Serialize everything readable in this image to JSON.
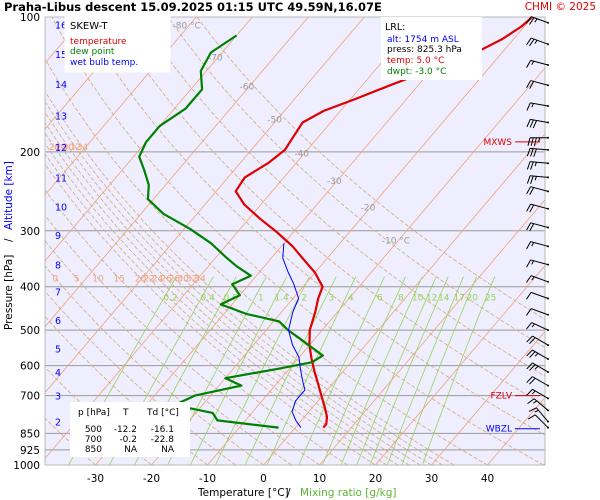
{
  "header": {
    "title": "Praha-Libus   descent   15.09.2025 01:15 UTC   49.59N,16.07E",
    "credit": "CHMI © 2025"
  },
  "legend": {
    "name": "SKEW-T",
    "entries": [
      {
        "label": "temperature",
        "color": "#e00000"
      },
      {
        "label": "dew point",
        "color": "#008000"
      },
      {
        "label": "wet bulb temp.",
        "color": "#0000ff"
      }
    ]
  },
  "lrl_box": {
    "title": "LRL:",
    "lines": [
      {
        "text": "alt: 1754 m ASL",
        "color": "#0000ff"
      },
      {
        "text": "press: 825.3 hPa",
        "color": "#000000"
      },
      {
        "text": "temp: 5.0 °C",
        "color": "#e00000"
      },
      {
        "text": "dwpt: -3.0 °C",
        "color": "#008000"
      }
    ]
  },
  "level_table": {
    "headers": [
      "p [hPa]",
      "T",
      "Td [°C]"
    ],
    "rows": [
      [
        "500",
        "-12.2",
        "-16.1"
      ],
      [
        "700",
        "-0.2",
        "-22.8"
      ],
      [
        "850",
        "NA",
        "NA"
      ]
    ]
  },
  "level_markers": [
    {
      "label": "MXWS",
      "pressure": 190,
      "color": "#e00000"
    },
    {
      "label": "FZLV",
      "pressure": 700,
      "color": "#e00000"
    },
    {
      "label": "WBZL",
      "pressure": 830,
      "color": "#0000ff"
    }
  ],
  "colors": {
    "isotherm": "#f3a07a",
    "dry_adiabat": "#d2aa78",
    "mixing_ratio": "#9ad25a",
    "isobar": "#9a9a9a",
    "plot_bg": "#eeeeff",
    "temperature": "#e00000",
    "dew_point": "#008000",
    "wet_bulb": "#0000ff",
    "altitude": "#0000ff"
  },
  "chart_data": {
    "type": "line",
    "title": "Praha-Libus descent 15.09.2025 01:15 UTC 49.59N,16.07E",
    "xlabel": "Temperature [°C]",
    "xlabel_secondary": "Mixing ratio [g/kg]",
    "ylabel": "Pressure [hPa]",
    "ylabel_secondary": "Altitude [km]",
    "y_scale": "log",
    "xlim": [
      -35,
      40
    ],
    "ylim": [
      1000,
      100
    ],
    "x_ticks": [
      -30,
      -20,
      -10,
      0,
      10,
      20,
      30,
      40
    ],
    "y_ticks": [
      100,
      200,
      300,
      400,
      500,
      600,
      700,
      850,
      925,
      1000
    ],
    "altitude_ticks": [
      {
        "km": 2,
        "p": 800
      },
      {
        "km": 3,
        "p": 700
      },
      {
        "km": 4,
        "p": 620
      },
      {
        "km": 5,
        "p": 550
      },
      {
        "km": 6,
        "p": 475
      },
      {
        "km": 7,
        "p": 410
      },
      {
        "km": 8,
        "p": 357
      },
      {
        "km": 9,
        "p": 307
      },
      {
        "km": 10,
        "p": 265
      },
      {
        "km": 11,
        "p": 228
      },
      {
        "km": 12,
        "p": 195
      },
      {
        "km": 13,
        "p": 166
      },
      {
        "km": 14,
        "p": 141
      },
      {
        "km": 15,
        "p": 121
      },
      {
        "km": 16,
        "p": 104
      }
    ],
    "isotherm_labels": [
      {
        "text": "-80 °C",
        "t": -80,
        "p": 106
      },
      {
        "text": "-70",
        "t": -70,
        "p": 125
      },
      {
        "text": "-60",
        "t": -60,
        "p": 145
      },
      {
        "text": "-50",
        "t": -50,
        "p": 172
      },
      {
        "text": "-40",
        "t": -40,
        "p": 205
      },
      {
        "text": "-30",
        "t": -30,
        "p": 236
      },
      {
        "text": "-20",
        "t": -20,
        "p": 270
      },
      {
        "text": "-10 °C",
        "t": -10,
        "p": 320
      }
    ],
    "adiabat_labels_upper": {
      "p": 195,
      "values": [
        "0",
        "5",
        "10",
        "15",
        "20",
        "22",
        "24",
        "26",
        "28",
        "30",
        "32",
        "34"
      ]
    },
    "adiabat_labels_lower": {
      "p": 383,
      "values": [
        "-10",
        "-5",
        "0",
        "5",
        "10",
        "15",
        "20",
        "22",
        "24",
        "26",
        "28",
        "30",
        "32",
        "34"
      ]
    },
    "mixing_ratio_values": [
      "0.2",
      "0.4",
      "0.6",
      "1",
      "1.4",
      "2",
      "3",
      "4",
      "6",
      "8",
      "10",
      "12",
      "14",
      "17",
      "20",
      "25"
    ],
    "series": [
      {
        "name": "temperature",
        "color": "#e00000",
        "points": [
          [
            -20,
            100
          ],
          [
            -20.5,
            105
          ],
          [
            -22,
            112
          ],
          [
            -24,
            118
          ],
          [
            -27,
            125
          ],
          [
            -31,
            133
          ],
          [
            -35,
            142
          ],
          [
            -39,
            152
          ],
          [
            -43,
            162
          ],
          [
            -45,
            172
          ],
          [
            -44.5,
            185
          ],
          [
            -44,
            198
          ],
          [
            -45,
            212
          ],
          [
            -47,
            228
          ],
          [
            -46.5,
            245
          ],
          [
            -43,
            262
          ],
          [
            -38,
            282
          ],
          [
            -33,
            302
          ],
          [
            -28,
            325
          ],
          [
            -24,
            348
          ],
          [
            -20,
            372
          ],
          [
            -16.5,
            400
          ],
          [
            -15.5,
            425
          ],
          [
            -14,
            455
          ],
          [
            -12.2,
            500
          ],
          [
            -10,
            540
          ],
          [
            -7.5,
            580
          ],
          [
            -5,
            620
          ],
          [
            -2.5,
            660
          ],
          [
            -0.2,
            700
          ],
          [
            2,
            740
          ],
          [
            4,
            780
          ],
          [
            5,
            810
          ],
          [
            5,
            825
          ]
        ]
      },
      {
        "name": "dew point",
        "color": "#008000",
        "points": [
          [
            -70,
            110
          ],
          [
            -72,
            120
          ],
          [
            -71,
            132
          ],
          [
            -68,
            145
          ],
          [
            -68,
            160
          ],
          [
            -70,
            175
          ],
          [
            -70,
            190
          ],
          [
            -69,
            205
          ],
          [
            -66,
            220
          ],
          [
            -63,
            237
          ],
          [
            -61,
            255
          ],
          [
            -56,
            275
          ],
          [
            -49,
            297
          ],
          [
            -43,
            320
          ],
          [
            -38,
            345
          ],
          [
            -35,
            360
          ],
          [
            -31,
            378
          ],
          [
            -33,
            395
          ],
          [
            -30,
            418
          ],
          [
            -32,
            438
          ],
          [
            -26,
            460
          ],
          [
            -19,
            478
          ],
          [
            -16.1,
            500
          ],
          [
            -13,
            520
          ],
          [
            -9,
            548
          ],
          [
            -6,
            570
          ],
          [
            -7,
            590
          ],
          [
            -12,
            610
          ],
          [
            -20,
            640
          ],
          [
            -16,
            665
          ],
          [
            -22.8,
            700
          ],
          [
            -25,
            735
          ],
          [
            -17,
            765
          ],
          [
            -15,
            795
          ],
          [
            -3,
            825
          ]
        ]
      },
      {
        "name": "wet bulb temp.",
        "color": "#0000ff",
        "points": [
          [
            -30,
            320
          ],
          [
            -28,
            345
          ],
          [
            -25,
            370
          ],
          [
            -22,
            395
          ],
          [
            -19,
            425
          ],
          [
            -18,
            455
          ],
          [
            -16,
            500
          ],
          [
            -13,
            540
          ],
          [
            -10,
            575
          ],
          [
            -8,
            610
          ],
          [
            -6,
            645
          ],
          [
            -4,
            680
          ],
          [
            -4,
            720
          ],
          [
            -3,
            760
          ],
          [
            -1,
            795
          ],
          [
            1,
            825
          ]
        ]
      }
    ],
    "wind_barbs": [
      {
        "p": 103,
        "dir": 290,
        "kt": 25
      },
      {
        "p": 115,
        "dir": 290,
        "kt": 25
      },
      {
        "p": 128,
        "dir": 285,
        "kt": 15
      },
      {
        "p": 142,
        "dir": 285,
        "kt": 20
      },
      {
        "p": 158,
        "dir": 280,
        "kt": 15
      },
      {
        "p": 172,
        "dir": 280,
        "kt": 30
      },
      {
        "p": 186,
        "dir": 270,
        "kt": 35
      },
      {
        "p": 198,
        "dir": 275,
        "kt": 30
      },
      {
        "p": 212,
        "dir": 275,
        "kt": 25
      },
      {
        "p": 228,
        "dir": 275,
        "kt": 25
      },
      {
        "p": 245,
        "dir": 285,
        "kt": 20
      },
      {
        "p": 268,
        "dir": 285,
        "kt": 20
      },
      {
        "p": 295,
        "dir": 285,
        "kt": 20
      },
      {
        "p": 325,
        "dir": 285,
        "kt": 15
      },
      {
        "p": 357,
        "dir": 285,
        "kt": 15
      },
      {
        "p": 390,
        "dir": 290,
        "kt": 15
      },
      {
        "p": 425,
        "dir": 290,
        "kt": 10
      },
      {
        "p": 462,
        "dir": 290,
        "kt": 10
      },
      {
        "p": 500,
        "dir": 295,
        "kt": 15
      },
      {
        "p": 540,
        "dir": 300,
        "kt": 20
      },
      {
        "p": 580,
        "dir": 300,
        "kt": 25
      },
      {
        "p": 620,
        "dir": 300,
        "kt": 25
      },
      {
        "p": 665,
        "dir": 300,
        "kt": 20
      },
      {
        "p": 710,
        "dir": 300,
        "kt": 15
      },
      {
        "p": 755,
        "dir": 310,
        "kt": 15
      },
      {
        "p": 800,
        "dir": 320,
        "kt": 15
      },
      {
        "p": 825,
        "dir": 315,
        "kt": 10
      }
    ]
  }
}
